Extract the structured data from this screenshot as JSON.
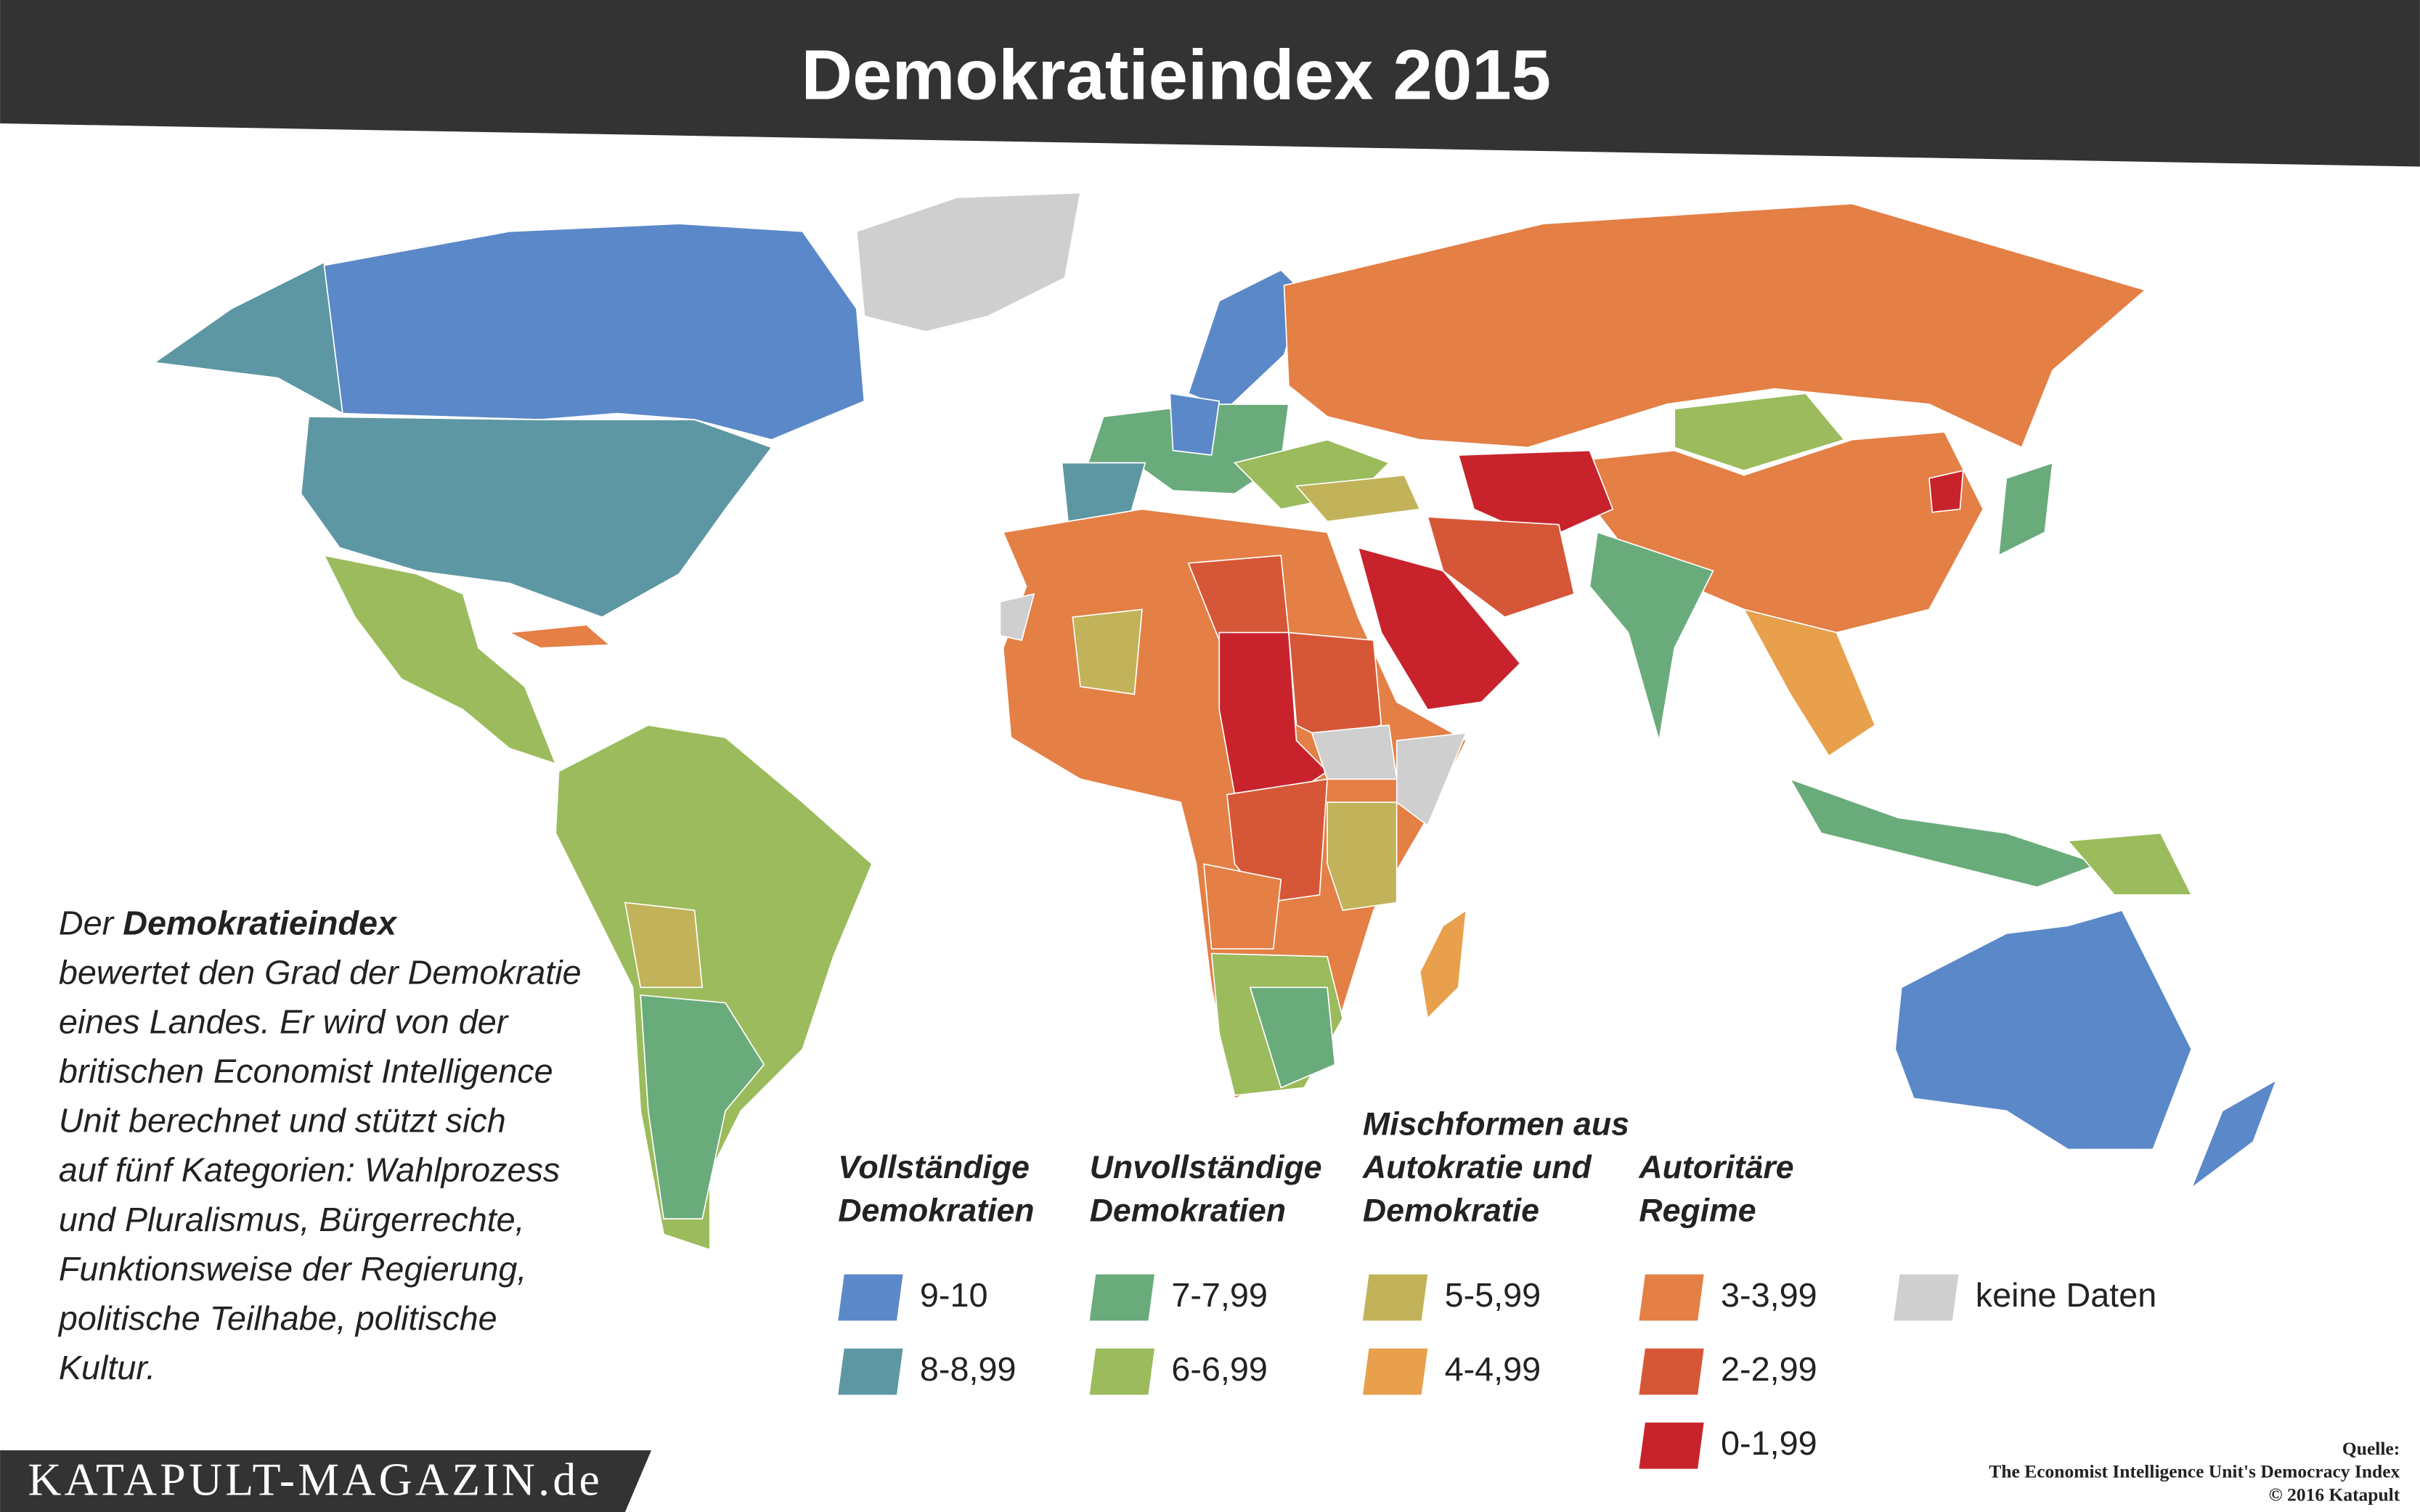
{
  "header": {
    "title": "Demokratieindex 2015"
  },
  "description": {
    "intro": "Der",
    "highlight": "Demokratieindex",
    "lines": [
      "bewertet den Grad der Demokratie",
      "eines Landes. Er wird von der",
      "britischen Economist Intelligence",
      "Unit berechnet und stützt sich",
      "auf fünf Kategorien: Wahlprozess",
      "und Pluralismus, Bürgerrechte,",
      "Funktionsweise der Regierung,",
      "politische Teilhabe, politische",
      "Kultur."
    ]
  },
  "legend": {
    "groups": [
      {
        "title": [
          "Vollständige",
          "Demokratien"
        ],
        "items": [
          {
            "label": "9-10",
            "color": "#5b88c8"
          },
          {
            "label": "8-8,99",
            "color": "#5d97a3"
          }
        ]
      },
      {
        "title": [
          "Unvollständige",
          "Demokratien"
        ],
        "items": [
          {
            "label": "7-7,99",
            "color": "#6aab7c"
          },
          {
            "label": "6-6,99",
            "color": "#9bbb5c"
          }
        ]
      },
      {
        "title": [
          "Mischformen aus",
          "Autokratie und",
          "Demokratie"
        ],
        "items": [
          {
            "label": "5-5,99",
            "color": "#c2b35a"
          },
          {
            "label": "4-4,99",
            "color": "#e8a04c"
          }
        ]
      },
      {
        "title": [
          "Autoritäre",
          "Regime"
        ],
        "items": [
          {
            "label": "3-3,99",
            "color": "#e47f45"
          },
          {
            "label": "2-2,99",
            "color": "#d65737"
          },
          {
            "label": "0-1,99",
            "color": "#c8232c"
          }
        ]
      },
      {
        "title": [],
        "items": [
          {
            "label": "keine Daten",
            "color": "#cfcfcf"
          }
        ]
      }
    ]
  },
  "source": {
    "heading": "Quelle:",
    "name": "The Economist Intelligence Unit's Democracy Index",
    "credit": "© 2016 Katapult"
  },
  "brand": "KATAPULT-MAGAZIN.de"
}
